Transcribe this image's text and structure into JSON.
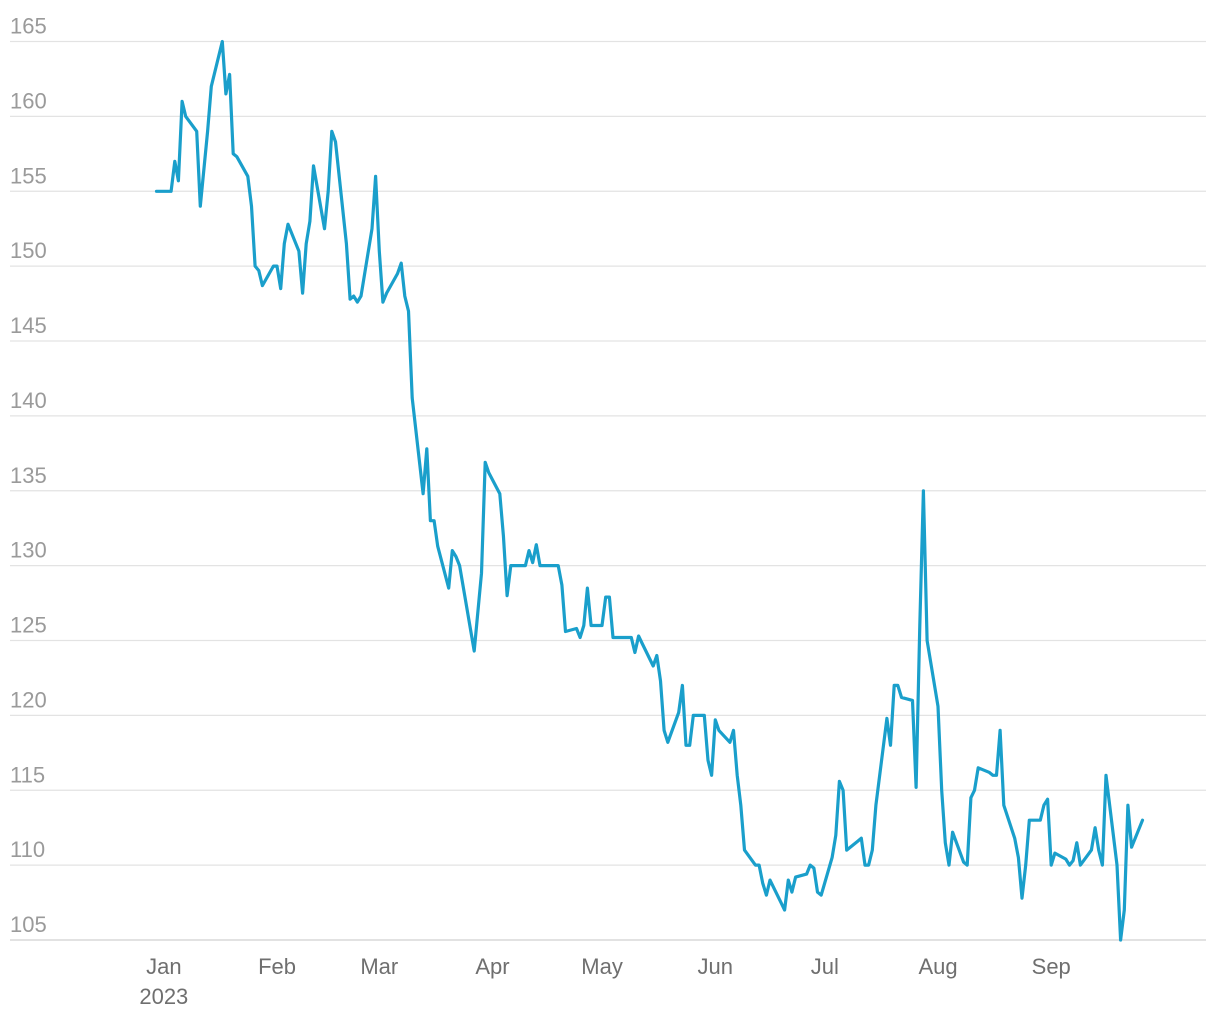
{
  "chart_data": {
    "type": "line",
    "title": "",
    "xlabel": "",
    "ylabel": "",
    "x_axis_type": "date",
    "xlim": [
      "2022-12-20",
      "2023-10-09"
    ],
    "ylim": [
      103,
      167
    ],
    "y_ticks": [
      105,
      110,
      115,
      120,
      125,
      130,
      135,
      140,
      145,
      150,
      155,
      160,
      165
    ],
    "x_ticks": [
      {
        "date": "2023-01-01",
        "label": "Jan",
        "sublabel": "2023"
      },
      {
        "date": "2023-02-01",
        "label": "Feb"
      },
      {
        "date": "2023-03-01",
        "label": "Mar"
      },
      {
        "date": "2023-04-01",
        "label": "Apr"
      },
      {
        "date": "2023-05-01",
        "label": "May"
      },
      {
        "date": "2023-06-01",
        "label": "Jun"
      },
      {
        "date": "2023-07-01",
        "label": "Jul"
      },
      {
        "date": "2023-08-01",
        "label": "Aug"
      },
      {
        "date": "2023-09-01",
        "label": "Sep"
      }
    ],
    "grid": true,
    "legend": "none",
    "series": [
      {
        "color": "#1a9fcb",
        "points": [
          [
            "2022-12-30",
            155.0
          ],
          [
            "2023-01-02",
            155.0
          ],
          [
            "2023-01-03",
            155.0
          ],
          [
            "2023-01-04",
            157.0
          ],
          [
            "2023-01-05",
            155.7
          ],
          [
            "2023-01-06",
            161.0
          ],
          [
            "2023-01-07",
            160.0
          ],
          [
            "2023-01-10",
            159.0
          ],
          [
            "2023-01-11",
            154.0
          ],
          [
            "2023-01-13",
            159.0
          ],
          [
            "2023-01-14",
            162.0
          ],
          [
            "2023-01-17",
            165.0
          ],
          [
            "2023-01-18",
            161.5
          ],
          [
            "2023-01-19",
            162.8
          ],
          [
            "2023-01-20",
            157.5
          ],
          [
            "2023-01-21",
            157.3
          ],
          [
            "2023-01-24",
            156.0
          ],
          [
            "2023-01-25",
            154.0
          ],
          [
            "2023-01-26",
            150.0
          ],
          [
            "2023-01-27",
            149.7
          ],
          [
            "2023-01-28",
            148.7
          ],
          [
            "2023-01-31",
            150.0
          ],
          [
            "2023-02-01",
            150.0
          ],
          [
            "2023-02-02",
            148.5
          ],
          [
            "2023-02-03",
            151.5
          ],
          [
            "2023-02-04",
            152.8
          ],
          [
            "2023-02-07",
            151.0
          ],
          [
            "2023-02-08",
            148.2
          ],
          [
            "2023-02-09",
            151.5
          ],
          [
            "2023-02-10",
            153.0
          ],
          [
            "2023-02-11",
            156.7
          ],
          [
            "2023-02-14",
            152.5
          ],
          [
            "2023-02-15",
            155.0
          ],
          [
            "2023-02-16",
            159.0
          ],
          [
            "2023-02-17",
            158.3
          ],
          [
            "2023-02-20",
            151.5
          ],
          [
            "2023-02-21",
            147.8
          ],
          [
            "2023-02-22",
            148.0
          ],
          [
            "2023-02-23",
            147.6
          ],
          [
            "2023-02-24",
            148.0
          ],
          [
            "2023-02-27",
            152.5
          ],
          [
            "2023-02-28",
            156.0
          ],
          [
            "2023-03-01",
            151.0
          ],
          [
            "2023-03-02",
            147.6
          ],
          [
            "2023-03-03",
            148.2
          ],
          [
            "2023-03-06",
            149.5
          ],
          [
            "2023-03-07",
            150.2
          ],
          [
            "2023-03-08",
            148.0
          ],
          [
            "2023-03-09",
            147.0
          ],
          [
            "2023-03-10",
            141.2
          ],
          [
            "2023-03-13",
            134.8
          ],
          [
            "2023-03-14",
            137.8
          ],
          [
            "2023-03-15",
            133.0
          ],
          [
            "2023-03-16",
            133.0
          ],
          [
            "2023-03-17",
            131.3
          ],
          [
            "2023-03-20",
            128.5
          ],
          [
            "2023-03-21",
            131.0
          ],
          [
            "2023-03-22",
            130.6
          ],
          [
            "2023-03-23",
            130.0
          ],
          [
            "2023-03-27",
            124.3
          ],
          [
            "2023-03-29",
            129.5
          ],
          [
            "2023-03-30",
            136.9
          ],
          [
            "2023-03-31",
            136.2
          ],
          [
            "2023-04-03",
            134.8
          ],
          [
            "2023-04-04",
            132.0
          ],
          [
            "2023-04-05",
            128.0
          ],
          [
            "2023-04-06",
            130.0
          ],
          [
            "2023-04-10",
            130.0
          ],
          [
            "2023-04-11",
            131.0
          ],
          [
            "2023-04-12",
            130.2
          ],
          [
            "2023-04-13",
            131.4
          ],
          [
            "2023-04-14",
            130.0
          ],
          [
            "2023-04-19",
            130.0
          ],
          [
            "2023-04-20",
            128.7
          ],
          [
            "2023-04-21",
            125.6
          ],
          [
            "2023-04-24",
            125.8
          ],
          [
            "2023-04-25",
            125.2
          ],
          [
            "2023-04-26",
            126.0
          ],
          [
            "2023-04-27",
            128.5
          ],
          [
            "2023-04-28",
            126.0
          ],
          [
            "2023-05-01",
            126.0
          ],
          [
            "2023-05-02",
            127.9
          ],
          [
            "2023-05-03",
            127.9
          ],
          [
            "2023-05-04",
            125.2
          ],
          [
            "2023-05-08",
            125.2
          ],
          [
            "2023-05-09",
            125.2
          ],
          [
            "2023-05-10",
            124.2
          ],
          [
            "2023-05-11",
            125.3
          ],
          [
            "2023-05-12",
            124.8
          ],
          [
            "2023-05-15",
            123.3
          ],
          [
            "2023-05-16",
            124.0
          ],
          [
            "2023-05-17",
            122.3
          ],
          [
            "2023-05-18",
            119.0
          ],
          [
            "2023-05-19",
            118.2
          ],
          [
            "2023-05-22",
            120.2
          ],
          [
            "2023-05-23",
            122.0
          ],
          [
            "2023-05-24",
            118.0
          ],
          [
            "2023-05-25",
            118.0
          ],
          [
            "2023-05-26",
            120.0
          ],
          [
            "2023-05-29",
            120.0
          ],
          [
            "2023-05-30",
            117.0
          ],
          [
            "2023-05-31",
            116.0
          ],
          [
            "2023-06-01",
            119.7
          ],
          [
            "2023-06-02",
            119.0
          ],
          [
            "2023-06-05",
            118.2
          ],
          [
            "2023-06-06",
            119.0
          ],
          [
            "2023-06-07",
            116.0
          ],
          [
            "2023-06-08",
            114.0
          ],
          [
            "2023-06-09",
            111.0
          ],
          [
            "2023-06-12",
            110.0
          ],
          [
            "2023-06-13",
            110.0
          ],
          [
            "2023-06-14",
            108.8
          ],
          [
            "2023-06-15",
            108.0
          ],
          [
            "2023-06-16",
            109.0
          ],
          [
            "2023-06-19",
            107.5
          ],
          [
            "2023-06-20",
            107.0
          ],
          [
            "2023-06-21",
            109.0
          ],
          [
            "2023-06-22",
            108.2
          ],
          [
            "2023-06-23",
            109.2
          ],
          [
            "2023-06-26",
            109.4
          ],
          [
            "2023-06-27",
            110.0
          ],
          [
            "2023-06-28",
            109.8
          ],
          [
            "2023-06-29",
            108.2
          ],
          [
            "2023-06-30",
            108.0
          ],
          [
            "2023-07-03",
            110.5
          ],
          [
            "2023-07-04",
            112.0
          ],
          [
            "2023-07-05",
            115.6
          ],
          [
            "2023-07-06",
            115.0
          ],
          [
            "2023-07-07",
            111.0
          ],
          [
            "2023-07-10",
            111.6
          ],
          [
            "2023-07-11",
            111.8
          ],
          [
            "2023-07-12",
            110.0
          ],
          [
            "2023-07-13",
            110.0
          ],
          [
            "2023-07-14",
            111.0
          ],
          [
            "2023-07-15",
            114.0
          ],
          [
            "2023-07-18",
            119.8
          ],
          [
            "2023-07-19",
            118.0
          ],
          [
            "2023-07-20",
            122.0
          ],
          [
            "2023-07-21",
            122.0
          ],
          [
            "2023-07-22",
            121.2
          ],
          [
            "2023-07-25",
            121.0
          ],
          [
            "2023-07-26",
            115.2
          ],
          [
            "2023-07-27",
            126.0
          ],
          [
            "2023-07-28",
            135.0
          ],
          [
            "2023-07-29",
            125.0
          ],
          [
            "2023-08-01",
            120.6
          ],
          [
            "2023-08-02",
            115.0
          ],
          [
            "2023-08-03",
            111.5
          ],
          [
            "2023-08-04",
            110.0
          ],
          [
            "2023-08-05",
            112.2
          ],
          [
            "2023-08-08",
            110.2
          ],
          [
            "2023-08-09",
            110.0
          ],
          [
            "2023-08-10",
            114.5
          ],
          [
            "2023-08-11",
            115.0
          ],
          [
            "2023-08-12",
            116.5
          ],
          [
            "2023-08-15",
            116.2
          ],
          [
            "2023-08-16",
            116.0
          ],
          [
            "2023-08-17",
            116.0
          ],
          [
            "2023-08-18",
            119.0
          ],
          [
            "2023-08-19",
            114.0
          ],
          [
            "2023-08-22",
            111.8
          ],
          [
            "2023-08-23",
            110.5
          ],
          [
            "2023-08-24",
            107.8
          ],
          [
            "2023-08-25",
            110.0
          ],
          [
            "2023-08-26",
            113.0
          ],
          [
            "2023-08-29",
            113.0
          ],
          [
            "2023-08-30",
            114.0
          ],
          [
            "2023-08-31",
            114.4
          ],
          [
            "2023-09-01",
            110.0
          ],
          [
            "2023-09-02",
            110.8
          ],
          [
            "2023-09-05",
            110.4
          ],
          [
            "2023-09-06",
            110.0
          ],
          [
            "2023-09-07",
            110.3
          ],
          [
            "2023-09-08",
            111.5
          ],
          [
            "2023-09-09",
            110.0
          ],
          [
            "2023-09-12",
            111.0
          ],
          [
            "2023-09-13",
            112.5
          ],
          [
            "2023-09-14",
            111.0
          ],
          [
            "2023-09-15",
            110.0
          ],
          [
            "2023-09-16",
            116.0
          ],
          [
            "2023-09-19",
            110.0
          ],
          [
            "2023-09-20",
            105.0
          ],
          [
            "2023-09-21",
            107.0
          ],
          [
            "2023-09-22",
            114.0
          ],
          [
            "2023-09-23",
            111.2
          ],
          [
            "2023-09-26",
            113.0
          ]
        ]
      }
    ]
  }
}
